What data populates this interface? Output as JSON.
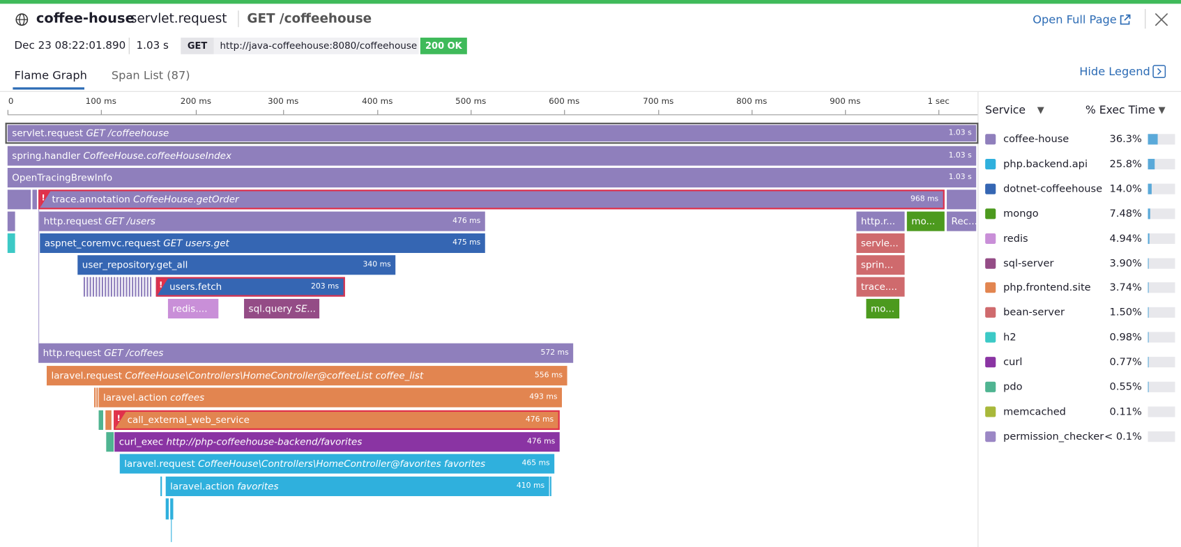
{
  "header": {
    "service": "coffee-house",
    "operation": "servlet.request",
    "resource": "GET /coffeehouse",
    "open_full_page": "Open Full Page",
    "date": "Dec 23 08:22:01.890",
    "duration": "1.03 s",
    "method": "GET",
    "url": "http://java-coffeehouse:8080/coffeehouse",
    "status": "200 OK"
  },
  "tabs": [
    "Flame Graph",
    "Span List (87)"
  ],
  "hide_legend": "Hide Legend",
  "ruler": [
    "0",
    "100 ms",
    "200 ms",
    "300 ms",
    "400 ms",
    "500 ms",
    "600 ms",
    "700 ms",
    "800 ms",
    "900 ms",
    "1 sec"
  ],
  "legend": {
    "service_header": "Service",
    "exec_header": "% Exec Time",
    "items": [
      {
        "name": "coffee-house",
        "exec_time": 36.3,
        "exec_time_label": "36.3%",
        "color": "#8f7fbc"
      },
      {
        "name": "php.backend.api",
        "exec_time": 25.8,
        "exec_time_label": "25.8%",
        "color": "#2fb0dd"
      },
      {
        "name": "dotnet-coffeehouse",
        "exec_time": 14.0,
        "exec_time_label": "14.0%",
        "color": "#3566b3"
      },
      {
        "name": "mongo",
        "exec_time": 7.48,
        "exec_time_label": "7.48%",
        "color": "#4c9a1e"
      },
      {
        "name": "redis",
        "exec_time": 4.94,
        "exec_time_label": "4.94%",
        "color": "#c98fd8"
      },
      {
        "name": "sql-server",
        "exec_time": 3.9,
        "exec_time_label": "3.90%",
        "color": "#944c86"
      },
      {
        "name": "php.frontend.site",
        "exec_time": 3.74,
        "exec_time_label": "3.74%",
        "color": "#e28550"
      },
      {
        "name": "bean-server",
        "exec_time": 1.5,
        "exec_time_label": "1.50%",
        "color": "#cf6a6d"
      },
      {
        "name": "h2",
        "exec_time": 0.98,
        "exec_time_label": "0.98%",
        "color": "#3cc9c6"
      },
      {
        "name": "curl",
        "exec_time": 0.77,
        "exec_time_label": "0.77%",
        "color": "#8a34a3"
      },
      {
        "name": "pdo",
        "exec_time": 0.55,
        "exec_time_label": "0.55%",
        "color": "#4fb491"
      },
      {
        "name": "memcached",
        "exec_time": 0.11,
        "exec_time_label": "0.11%",
        "color": "#a8b83a"
      },
      {
        "name": "permission_checker",
        "exec_time": 0.05,
        "exec_time_label": "< 0.1%",
        "color": "#9b87c5"
      }
    ]
  },
  "spans": [
    {
      "name": "servlet.request",
      "detail": "GET /coffeehouse",
      "duration": "1.03 s"
    },
    {
      "name": "spring.handler",
      "detail": "CoffeeHouse.coffeeHouseIndex",
      "duration": "1.03 s"
    },
    {
      "name": "OpenTracingBrewInfo",
      "duration": "1.03 s"
    },
    {
      "name": "trace.annotation",
      "detail": "CoffeeHouse.getOrder",
      "duration": "968 ms"
    },
    {
      "name": "http.request",
      "detail": "GET /users",
      "duration": "476 ms"
    },
    {
      "name": "aspnet_coremvc.request",
      "detail": "GET users.get",
      "duration": "475 ms"
    },
    {
      "name": "user_repository.get_all",
      "duration": "340 ms"
    },
    {
      "name": "users.fetch",
      "duration": "203 ms"
    },
    {
      "name": "redis...."
    },
    {
      "name": "sql.query",
      "detail": "SE..."
    },
    {
      "name": "http.r..."
    },
    {
      "name": "mo..."
    },
    {
      "name": "Rec..."
    },
    {
      "name": "servle..."
    },
    {
      "name": "sprin..."
    },
    {
      "name": "trace...."
    },
    {
      "name": "mo..."
    },
    {
      "name": "http.request",
      "detail": "GET /coffees",
      "duration": "572 ms"
    },
    {
      "name": "laravel.request",
      "detail": "CoffeeHouse\\Controllers\\HomeController@coffeeList coffee_list",
      "duration": "556 ms"
    },
    {
      "name": "laravel.action",
      "detail": "coffees",
      "duration": "493 ms"
    },
    {
      "name": "call_external_web_service",
      "duration": "476 ms"
    },
    {
      "name": "curl_exec",
      "detail": "http://php-coffeehouse-backend/favorites",
      "duration": "476 ms"
    },
    {
      "name": "laravel.request",
      "detail": "CoffeeHouse\\Controllers\\HomeController@favorites favorites",
      "duration": "465 ms"
    },
    {
      "name": "laravel.action",
      "detail": "favorites",
      "duration": "410 ms"
    }
  ]
}
